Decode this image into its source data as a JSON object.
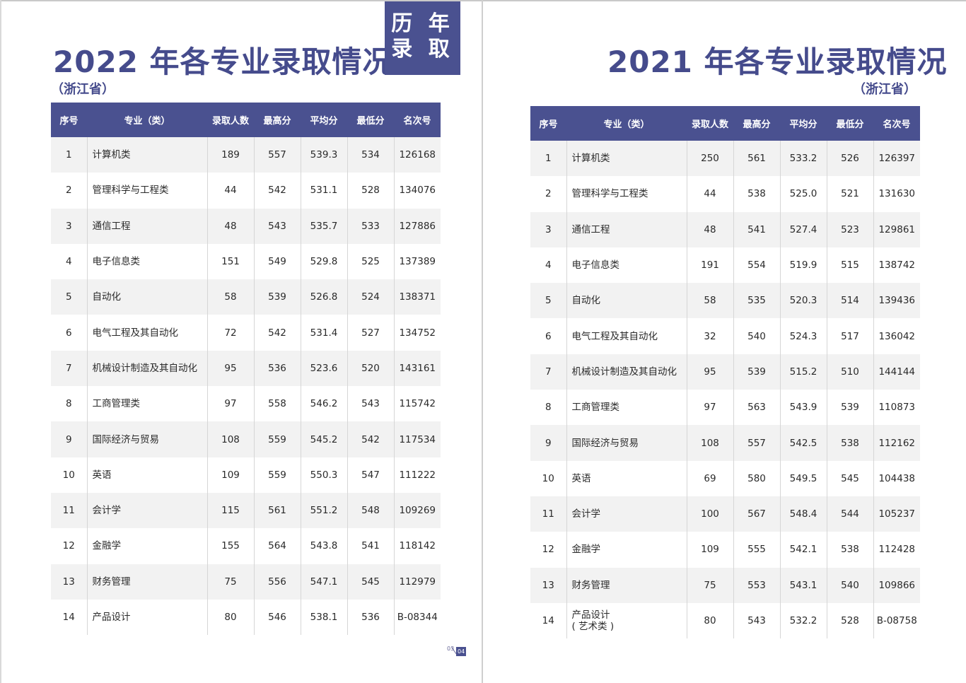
{
  "badge": {
    "line1": "历 年",
    "line2": "录 取"
  },
  "pages": {
    "left": {
      "title": "2022 年各专业录取情况",
      "subtitle": "（浙江省）",
      "page_a": "03",
      "page_b": "04"
    },
    "right": {
      "title": "2021 年各专业录取情况",
      "subtitle": "（浙江省）"
    }
  },
  "headers": [
    "序号",
    "专业（类）",
    "录取人数",
    "最高分",
    "平均分",
    "最低分",
    "名次号"
  ],
  "table_2022": [
    [
      "1",
      "计算机类",
      "189",
      "557",
      "539.3",
      "534",
      "126168"
    ],
    [
      "2",
      "管理科学与工程类",
      "44",
      "542",
      "531.1",
      "528",
      "134076"
    ],
    [
      "3",
      "通信工程",
      "48",
      "543",
      "535.7",
      "533",
      "127886"
    ],
    [
      "4",
      "电子信息类",
      "151",
      "549",
      "529.8",
      "525",
      "137389"
    ],
    [
      "5",
      "自动化",
      "58",
      "539",
      "526.8",
      "524",
      "138371"
    ],
    [
      "6",
      "电气工程及其自动化",
      "72",
      "542",
      "531.4",
      "527",
      "134752"
    ],
    [
      "7",
      "机械设计制造及其自动化",
      "95",
      "536",
      "523.6",
      "520",
      "143161"
    ],
    [
      "8",
      "工商管理类",
      "97",
      "558",
      "546.2",
      "543",
      "115742"
    ],
    [
      "9",
      "国际经济与贸易",
      "108",
      "559",
      "545.2",
      "542",
      "117534"
    ],
    [
      "10",
      "英语",
      "109",
      "559",
      "550.3",
      "547",
      "111222"
    ],
    [
      "11",
      "会计学",
      "115",
      "561",
      "551.2",
      "548",
      "109269"
    ],
    [
      "12",
      "金融学",
      "155",
      "564",
      "543.8",
      "541",
      "118142"
    ],
    [
      "13",
      "财务管理",
      "75",
      "556",
      "547.1",
      "545",
      "112979"
    ],
    [
      "14",
      "产品设计",
      "80",
      "546",
      "538.1",
      "536",
      "B-08344"
    ]
  ],
  "table_2021": [
    [
      "1",
      "计算机类",
      "250",
      "561",
      "533.2",
      "526",
      "126397"
    ],
    [
      "2",
      "管理科学与工程类",
      "44",
      "538",
      "525.0",
      "521",
      "131630"
    ],
    [
      "3",
      "通信工程",
      "48",
      "541",
      "527.4",
      "523",
      "129861"
    ],
    [
      "4",
      "电子信息类",
      "191",
      "554",
      "519.9",
      "515",
      "138742"
    ],
    [
      "5",
      "自动化",
      "58",
      "535",
      "520.3",
      "514",
      "139436"
    ],
    [
      "6",
      "电气工程及其自动化",
      "32",
      "540",
      "524.3",
      "517",
      "136042"
    ],
    [
      "7",
      "机械设计制造及其自动化",
      "95",
      "539",
      "515.2",
      "510",
      "144144"
    ],
    [
      "8",
      "工商管理类",
      "97",
      "563",
      "543.9",
      "539",
      "110873"
    ],
    [
      "9",
      "国际经济与贸易",
      "108",
      "557",
      "542.5",
      "538",
      "112162"
    ],
    [
      "10",
      "英语",
      "69",
      "580",
      "549.5",
      "545",
      "104438"
    ],
    [
      "11",
      "会计学",
      "100",
      "567",
      "548.4",
      "544",
      "105237"
    ],
    [
      "12",
      "金融学",
      "109",
      "555",
      "542.1",
      "538",
      "112428"
    ],
    [
      "13",
      "财务管理",
      "75",
      "553",
      "543.1",
      "540",
      "109866"
    ],
    [
      "14",
      "产品设计\n( 艺术类 )",
      "80",
      "543",
      "532.2",
      "528",
      "B-08758"
    ]
  ]
}
